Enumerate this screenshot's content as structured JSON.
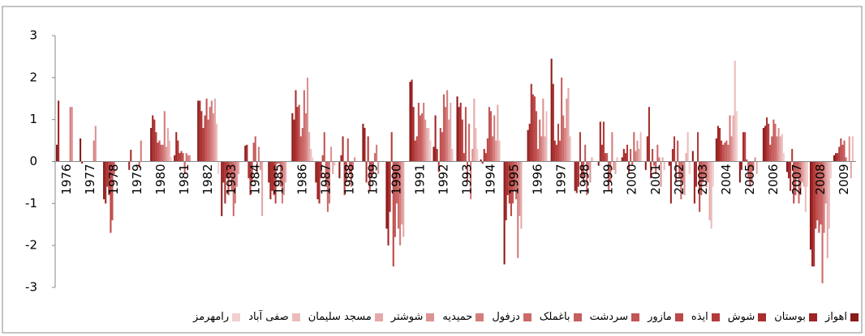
{
  "chart_data": {
    "type": "bar",
    "categories": [
      "1976",
      "1977",
      "1978",
      "1979",
      "1980",
      "1981",
      "1982",
      "1983",
      "1984",
      "1985",
      "1986",
      "1987",
      "1988",
      "1989",
      "1990",
      "1991",
      "1992",
      "1993",
      "1994",
      "1995",
      "1996",
      "1997",
      "1998",
      "1999",
      "2000",
      "2001",
      "2002",
      "2003",
      "2004",
      "2005",
      "2006",
      "2007",
      "2008",
      "2009"
    ],
    "ylim": [
      -3,
      3
    ],
    "yticks": [
      -3,
      -2,
      -1,
      0,
      1,
      2,
      3
    ],
    "series": [
      {
        "name": "اهواز",
        "color": "#8b1a1a",
        "values": [
          0.4,
          0.55,
          -0.9,
          0,
          0.8,
          0.15,
          1.45,
          -1.3,
          0.38,
          -0.5,
          1.15,
          -0.5,
          -0.4,
          0.9,
          -1.6,
          1.9,
          0.35,
          1.55,
          0.05,
          -2.45,
          0.75,
          2.45,
          -0.7,
          -0.1,
          0.1,
          -0.2,
          -0.1,
          0.25,
          0.55,
          -0.5,
          0.8,
          -0.25,
          -2.1,
          0.15
        ]
      },
      {
        "name": "بوستان",
        "color": "#a02424",
        "values": [
          1.45,
          -0.05,
          -1.0,
          -0.2,
          1.1,
          0.7,
          1.45,
          -0.5,
          0.4,
          -0.9,
          1.0,
          -0.9,
          0.15,
          0.8,
          -2.0,
          1.95,
          1.1,
          1.3,
          -0.05,
          -1.4,
          0.9,
          1.85,
          -0.75,
          0.95,
          0.3,
          0.6,
          -1.0,
          -1.0,
          0.85,
          -0.2,
          0.85,
          -0.4,
          -2.5,
          0.2
        ]
      },
      {
        "name": "شوش",
        "color": "#aa2e2e",
        "values": [
          0,
          0,
          -0.6,
          0.28,
          1.0,
          0.5,
          1.2,
          -1.0,
          -0.4,
          -0.7,
          1.7,
          -1.0,
          0.6,
          -0.5,
          -1.2,
          1.3,
          0.3,
          1.4,
          0.3,
          -0.8,
          1.85,
          0.5,
          -0.6,
          0.4,
          0.2,
          1.3,
          0.3,
          -0.6,
          0.8,
          0.7,
          1.05,
          -0.7,
          -2.5,
          0.2
        ]
      },
      {
        "name": "ایذه",
        "color": "#b43a3a",
        "values": [
          0,
          0,
          -0.8,
          0,
          0.7,
          0.2,
          0.8,
          -0.4,
          -0.8,
          -0.8,
          1.3,
          -0.4,
          -0.8,
          0.6,
          0.7,
          0.5,
          -0.25,
          1.0,
          0.2,
          -1.0,
          1.6,
          0.4,
          0.7,
          0.95,
          0.4,
          -0.4,
          0.6,
          0.7,
          0.5,
          0.7,
          0.9,
          0.3,
          -1.6,
          0.35
        ]
      },
      {
        "name": "مازور",
        "color": "#bc4848",
        "values": [
          0,
          0,
          -1.7,
          0,
          0.45,
          0.25,
          1.1,
          -0.8,
          -0.5,
          -1.0,
          1.35,
          0.15,
          -0.5,
          -0.7,
          -2.5,
          0.6,
          0.8,
          0.2,
          0.55,
          -1.3,
          1.55,
          0.9,
          -0.4,
          0.2,
          -0.3,
          0.3,
          -0.5,
          -1.2,
          0.4,
          0.05,
          0.4,
          -1.0,
          -1.4,
          0.55
        ]
      },
      {
        "name": "سردشت",
        "color": "#c25454",
        "values": [
          0,
          0,
          -1.4,
          0,
          0.5,
          0.2,
          1.5,
          -0.3,
          0.45,
          -0.05,
          0.6,
          0.7,
          0.55,
          -0.4,
          -1.8,
          1.4,
          0.7,
          1.3,
          1.3,
          -1.0,
          1.2,
          0.5,
          -0.5,
          0.2,
          0.3,
          -0.1,
          0.5,
          -0.8,
          0.45,
          -0.4,
          0.6,
          -0.8,
          -1.7,
          0.4
        ]
      },
      {
        "name": "باغملک",
        "color": "#c65e5e",
        "values": [
          0,
          0,
          -0.3,
          0,
          0.4,
          -0.3,
          1.0,
          -0.7,
          0.6,
          -0.05,
          0.8,
          -0.6,
          -0.3,
          -0.3,
          -1.0,
          1.1,
          1.6,
          -0.45,
          1.2,
          -0.7,
          0.3,
          2.0,
          0.4,
          -0.7,
          -0.1,
          -0.3,
          -0.4,
          -0.5,
          0.5,
          -0.6,
          1.0,
          -0.4,
          -1.5,
          0.5
        ]
      },
      {
        "name": "دزفول",
        "color": "#cc6a6a",
        "values": [
          0,
          0,
          0,
          -0.15,
          0.4,
          0.2,
          1.3,
          -1.3,
          -0.3,
          -0.6,
          1.7,
          -1.2,
          -0.6,
          0.2,
          -1.6,
          1.15,
          1.3,
          0.9,
          0.6,
          -0.9,
          1.0,
          1.1,
          -0.8,
          -0.5,
          0.7,
          0.4,
          -0.9,
          -0.4,
          0.4,
          -0.5,
          0.9,
          -1.0,
          -2.9,
          0.1
        ]
      },
      {
        "name": "حمیدیه",
        "color": "#d47c7c",
        "values": [
          1.3,
          0.5,
          0,
          0.5,
          1.2,
          0.15,
          1.45,
          -1.0,
          0.35,
          -1.0,
          1.15,
          -1.0,
          -0.2,
          0.4,
          -2.0,
          1.4,
          1.7,
          -0.9,
          1.1,
          -2.3,
          0.6,
          0.8,
          -0.2,
          0.7,
          0.25,
          0.1,
          -0.5,
          -0.6,
          1.1,
          -0.2,
          0.6,
          -0.8,
          -1.7,
          0
        ]
      },
      {
        "name": "شوشتر",
        "color": "#dc9292",
        "values": [
          1.3,
          0.85,
          0,
          0,
          0.35,
          0.15,
          1.15,
          -0.6,
          -0.2,
          -0.8,
          2.0,
          0.35,
          0.1,
          -0.3,
          -1.5,
          1.0,
          1.0,
          0.3,
          0.5,
          -1.3,
          1.5,
          1.5,
          -0.5,
          -0.2,
          0.5,
          -0.6,
          -0.8,
          -0.5,
          0.6,
          0.1,
          0.8,
          -0.5,
          -1.0,
          0.6
        ]
      },
      {
        "name": "مسجد سلیمان",
        "color": "#e4a8a8",
        "values": [
          0,
          0,
          0,
          0,
          0.8,
          0,
          1.5,
          -0.3,
          -1.3,
          -0.5,
          0.7,
          -0.3,
          0,
          0,
          -1.8,
          0.8,
          1.4,
          1.5,
          1.35,
          -1.6,
          0.6,
          1.75,
          0.1,
          -0.3,
          0.3,
          0.1,
          0.2,
          -1.4,
          1.1,
          -0.3,
          0.6,
          -0.6,
          -2.3,
          -0.4
        ]
      },
      {
        "name": "صفی آباد",
        "color": "#ecbcbc",
        "values": [
          0,
          0,
          0,
          0,
          0.5,
          0,
          0.9,
          0,
          0,
          0,
          0.3,
          -0.1,
          0,
          0,
          0,
          0.8,
          0.3,
          0.8,
          0.5,
          0,
          1.2,
          0.6,
          0,
          0.1,
          0.7,
          -0.2,
          0.7,
          -1.6,
          2.4,
          0,
          0.65,
          -1.2,
          -1.6,
          0.6
        ]
      },
      {
        "name": "رامهرمز",
        "color": "#f2cfcf",
        "values": [
          0,
          0,
          0,
          0,
          0.1,
          0,
          -0.3,
          0,
          0,
          0,
          0.1,
          0,
          0,
          0,
          0,
          0.5,
          0,
          0.3,
          0,
          0,
          0,
          0,
          0,
          0,
          0,
          0,
          -0.3,
          -0.6,
          1.2,
          0,
          0.2,
          -0.6,
          -0.4,
          0
        ]
      }
    ]
  }
}
